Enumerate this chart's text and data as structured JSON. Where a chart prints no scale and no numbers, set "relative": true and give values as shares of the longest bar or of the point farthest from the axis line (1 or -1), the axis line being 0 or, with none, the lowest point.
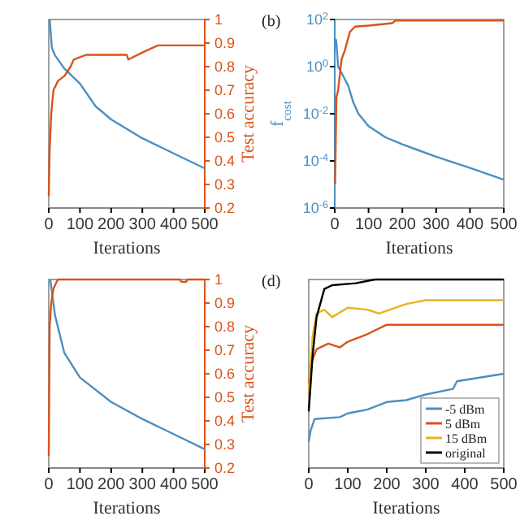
{
  "chart_data": [
    {
      "type": "line",
      "relative": true,
      "xlabel": "Iterations",
      "y2label": "Test accuracy",
      "xlim": [
        0,
        500
      ],
      "xticks": [
        0,
        100,
        200,
        300,
        400,
        500
      ],
      "y2lim": [
        0.2,
        1
      ],
      "y2ticks": [
        0.2,
        0.3,
        0.4,
        0.5,
        0.6,
        0.7,
        0.8,
        0.9,
        1
      ],
      "series": [
        {
          "color": "#4a8fc2",
          "x": [
            3,
            10,
            20,
            50,
            100,
            150,
            200,
            300,
            400,
            500
          ],
          "values": [
            1,
            0.85,
            0.81,
            0.74,
            0.66,
            0.54,
            0.47,
            0.37,
            0.29,
            0.21
          ]
        },
        {
          "color": "#d95319",
          "axis": "y2",
          "x": [
            0,
            3,
            8,
            15,
            30,
            50,
            70,
            80,
            100,
            120,
            150,
            250,
            255,
            300,
            350,
            500
          ],
          "values": [
            0.25,
            0.45,
            0.6,
            0.7,
            0.74,
            0.76,
            0.8,
            0.83,
            0.84,
            0.85,
            0.85,
            0.85,
            0.83,
            0.86,
            0.89,
            0.89
          ]
        }
      ]
    },
    {
      "type": "line",
      "log": "y",
      "ylabel": "f$_{cost}$",
      "xlabel": "Iterations",
      "xlim": [
        0,
        500
      ],
      "xticks": [
        0,
        100,
        200,
        300,
        400,
        500
      ],
      "ylim": [
        1e-06,
        100
      ],
      "yticks": [
        {
          "value": 1e-06,
          "label": "10$^{-6}$"
        },
        {
          "value": 0.0001,
          "label": "10$^{-4}$"
        },
        {
          "value": 0.01,
          "label": "10$^{-2}$"
        },
        {
          "value": 1,
          "label": "10$^{0}$"
        },
        {
          "value": 100,
          "label": "10$^{2}$"
        }
      ],
      "annotations": [
        "(b)"
      ],
      "series": [
        {
          "color": "#4a8fc2",
          "x": [
            3,
            5,
            10,
            25,
            40,
            55,
            70,
            100,
            150,
            200,
            300,
            400,
            500
          ],
          "values": [
            15,
            10,
            1,
            0.4,
            0.15,
            0.03,
            0.01,
            0.003,
            0.001,
            0.0005,
            0.00015,
            5e-05,
            1.6e-05
          ]
        },
        {
          "color": "#d95319",
          "x": [
            1,
            5,
            10,
            20,
            30,
            45,
            60,
            100,
            170,
            180,
            500
          ],
          "values": [
            1e-05,
            0.05,
            0.1,
            2,
            5,
            30,
            50,
            55,
            70,
            90,
            90
          ]
        }
      ]
    },
    {
      "type": "line",
      "relative": true,
      "xlabel": "Iterations",
      "y2label": "Test accuracy",
      "xlim": [
        0,
        500
      ],
      "xticks": [
        0,
        100,
        200,
        300,
        400,
        500
      ],
      "y2lim": [
        0.2,
        1
      ],
      "y2ticks": [
        0.2,
        0.3,
        0.4,
        0.5,
        0.6,
        0.7,
        0.8,
        0.9,
        1
      ],
      "series": [
        {
          "color": "#4a8fc2",
          "x": [
            5,
            20,
            50,
            100,
            200,
            300,
            400,
            500
          ],
          "values": [
            1,
            0.81,
            0.61,
            0.48,
            0.35,
            0.26,
            0.18,
            0.1
          ]
        },
        {
          "color": "#d95319",
          "axis": "y2",
          "x": [
            0,
            3,
            8,
            15,
            25,
            30,
            420,
            425,
            440,
            445,
            500
          ],
          "values": [
            0.25,
            0.8,
            0.9,
            0.96,
            0.99,
            1,
            1,
            0.99,
            0.99,
            1,
            1
          ]
        }
      ]
    },
    {
      "type": "line",
      "relative": true,
      "xlabel": "Iterations",
      "xlim": [
        0,
        500
      ],
      "xticks": [
        0,
        100,
        200,
        300,
        400,
        500
      ],
      "tick_labels": "x",
      "legend": "bottom right",
      "annotations": [
        "(d)"
      ],
      "series": [
        {
          "name": "-5 dBm",
          "color": "#4a8fc2",
          "x": [
            0,
            5,
            15,
            80,
            100,
            150,
            200,
            250,
            300,
            370,
            380,
            500
          ],
          "values": [
            0.14,
            0.2,
            0.26,
            0.27,
            0.29,
            0.31,
            0.35,
            0.36,
            0.39,
            0.42,
            0.46,
            0.5
          ]
        },
        {
          "name": "5 dBm",
          "color": "#d95319",
          "x": [
            0,
            5,
            20,
            50,
            80,
            100,
            150,
            200,
            500
          ],
          "values": [
            0.45,
            0.55,
            0.63,
            0.66,
            0.64,
            0.67,
            0.71,
            0.76,
            0.76
          ]
        },
        {
          "name": "15 dBm",
          "color": "#edb120",
          "x": [
            0,
            10,
            20,
            40,
            60,
            100,
            150,
            180,
            250,
            300,
            500
          ],
          "values": [
            0.4,
            0.7,
            0.82,
            0.84,
            0.8,
            0.85,
            0.84,
            0.82,
            0.87,
            0.89,
            0.89
          ]
        },
        {
          "name": "original",
          "color": "#000000",
          "x": [
            0,
            10,
            20,
            40,
            60,
            120,
            170,
            500
          ],
          "values": [
            0.3,
            0.6,
            0.8,
            0.95,
            0.97,
            0.98,
            1,
            1
          ]
        }
      ]
    }
  ]
}
